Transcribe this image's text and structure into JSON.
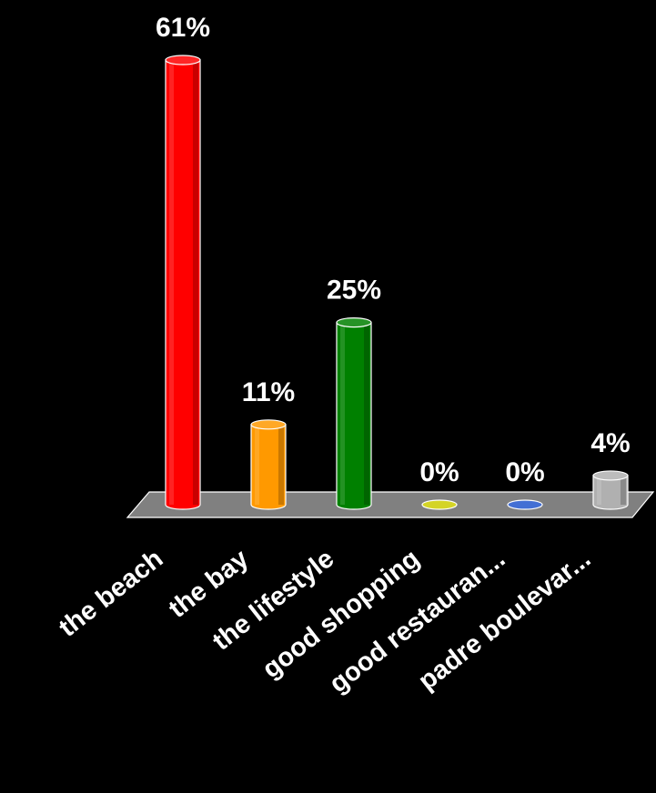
{
  "chart_data": {
    "type": "bar",
    "title": "",
    "xlabel": "",
    "ylabel": "",
    "categories": [
      "the beach",
      "the bay",
      "the lifestyle",
      "good shopping",
      "good restauran...",
      "padre boulevar..."
    ],
    "values": [
      61,
      11,
      25,
      0,
      0,
      4
    ],
    "value_labels": [
      "61%",
      "11%",
      "25%",
      "0%",
      "0%",
      "4%"
    ],
    "unit": "%",
    "ylim": [
      0,
      61
    ],
    "grid": false,
    "legend": "none",
    "style": "3d-cylinder"
  },
  "colors": {
    "background": "#000000",
    "floor": "#808080",
    "text": "#ffffff",
    "bars": [
      "#ff0000",
      "#ff9900",
      "#008000",
      "#cccc00",
      "#2255cc",
      "#b0b0b0"
    ]
  }
}
